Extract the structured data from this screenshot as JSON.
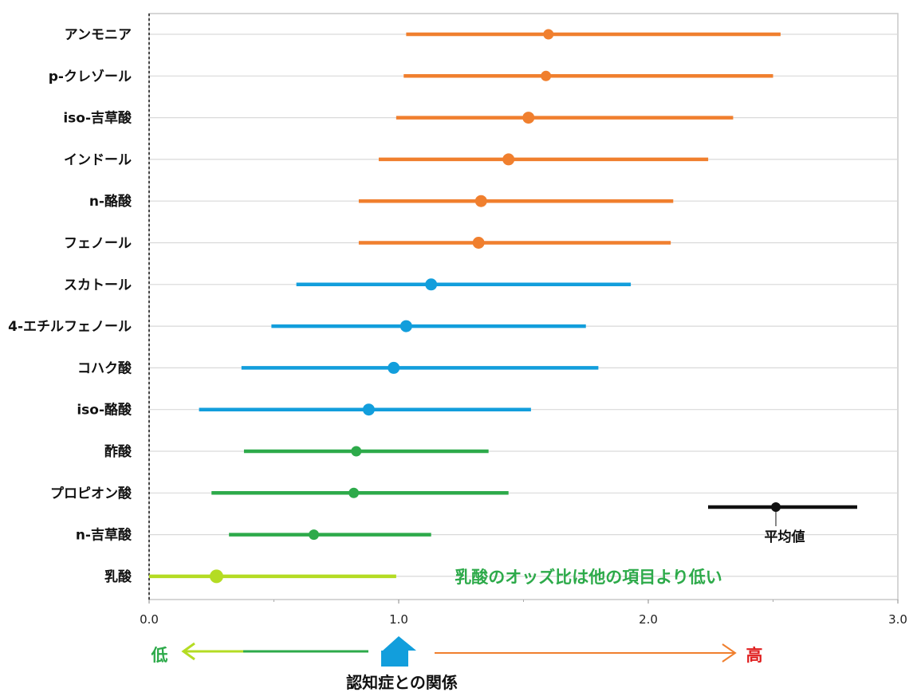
{
  "chart_data": {
    "type": "scatter",
    "subtype": "forest-plot",
    "title": "",
    "xlabel": "",
    "xlim": [
      0,
      3
    ],
    "xticks": [
      "0.0",
      "1.0",
      "2.0",
      "3.0"
    ],
    "grid": true,
    "rows": [
      {
        "label": "アンモニア",
        "estimate": 1.6,
        "low": 1.03,
        "high": 2.53,
        "color": "#F07F2E"
      },
      {
        "label": "p-クレゾール",
        "estimate": 1.59,
        "low": 1.02,
        "high": 2.5,
        "color": "#F07F2E"
      },
      {
        "label": "iso-吉草酸",
        "estimate": 1.52,
        "low": 0.99,
        "high": 2.34,
        "color": "#F07F2E"
      },
      {
        "label": "インドール",
        "estimate": 1.44,
        "low": 0.92,
        "high": 2.24,
        "color": "#F07F2E"
      },
      {
        "label": "n-酪酸",
        "estimate": 1.33,
        "low": 0.84,
        "high": 2.1,
        "color": "#F07F2E"
      },
      {
        "label": "フェノール",
        "estimate": 1.32,
        "low": 0.84,
        "high": 2.09,
        "color": "#F07F2E"
      },
      {
        "label": "スカトール",
        "estimate": 1.13,
        "low": 0.59,
        "high": 1.93,
        "color": "#129EDC"
      },
      {
        "label": "4-エチルフェノール",
        "estimate": 1.03,
        "low": 0.49,
        "high": 1.75,
        "color": "#129EDC"
      },
      {
        "label": "コハク酸",
        "estimate": 0.98,
        "low": 0.37,
        "high": 1.8,
        "color": "#129EDC"
      },
      {
        "label": "iso-酪酸",
        "estimate": 0.88,
        "low": 0.2,
        "high": 1.53,
        "color": "#129EDC"
      },
      {
        "label": "酢酸",
        "estimate": 0.83,
        "low": 0.38,
        "high": 1.36,
        "color": "#2DAA4A"
      },
      {
        "label": "プロピオン酸",
        "estimate": 0.82,
        "low": 0.25,
        "high": 1.44,
        "color": "#2DAA4A"
      },
      {
        "label": "n-吉草酸",
        "estimate": 0.66,
        "low": 0.32,
        "high": 1.13,
        "color": "#2DAA4A"
      },
      {
        "label": "乳酸",
        "estimate": 0.27,
        "low": 0.0,
        "high": 0.99,
        "color": "#B4DC23"
      }
    ],
    "legend": {
      "label": "平均値",
      "color": "#111111",
      "placement": "lower-right"
    },
    "annotations": {
      "note": "乳酸のオッズ比は他の項目より低い",
      "note_color": "#2DAA4A",
      "low_label": "低",
      "low_color": "#2DAA4A",
      "high_label": "高",
      "high_color": "#E02020",
      "caption": "認知症との関係",
      "center_arrow_color": "#129EDC"
    }
  }
}
